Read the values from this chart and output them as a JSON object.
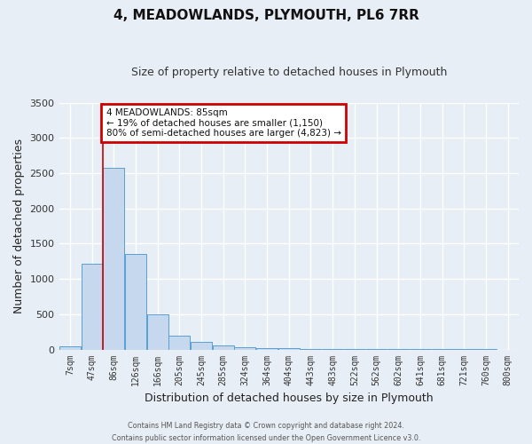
{
  "title": "4, MEADOWLANDS, PLYMOUTH, PL6 7RR",
  "subtitle": "Size of property relative to detached houses in Plymouth",
  "xlabel": "Distribution of detached houses by size in Plymouth",
  "ylabel": "Number of detached properties",
  "bar_labels": [
    "7sqm",
    "47sqm",
    "86sqm",
    "126sqm",
    "166sqm",
    "205sqm",
    "245sqm",
    "285sqm",
    "324sqm",
    "364sqm",
    "404sqm",
    "443sqm",
    "483sqm",
    "522sqm",
    "562sqm",
    "602sqm",
    "641sqm",
    "681sqm",
    "721sqm",
    "760sqm",
    "800sqm"
  ],
  "bar_values": [
    50,
    1220,
    2580,
    1350,
    500,
    200,
    110,
    55,
    30,
    25,
    20,
    8,
    5,
    3,
    2,
    2,
    1,
    1,
    1,
    1,
    0
  ],
  "bar_color": "#c5d8ed",
  "bar_edge_color": "#5a9fd4",
  "ylim": [
    0,
    3500
  ],
  "yticks": [
    0,
    500,
    1000,
    1500,
    2000,
    2500,
    3000,
    3500
  ],
  "red_line_x": 1.5,
  "annotation_title": "4 MEADOWLANDS: 85sqm",
  "annotation_line1": "← 19% of detached houses are smaller (1,150)",
  "annotation_line2": "80% of semi-detached houses are larger (4,823) →",
  "annotation_box_color": "#ffffff",
  "annotation_box_edge": "#cc0000",
  "footer1": "Contains HM Land Registry data © Crown copyright and database right 2024.",
  "footer2": "Contains public sector information licensed under the Open Government Licence v3.0.",
  "background_color": "#e8eef5",
  "plot_bg_color": "#e8eef5",
  "grid_color": "#ffffff"
}
